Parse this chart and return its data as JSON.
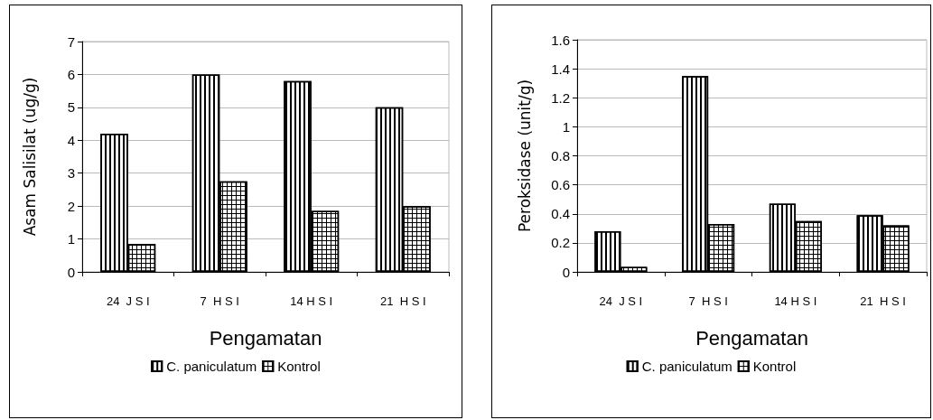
{
  "chart_data": [
    {
      "type": "bar",
      "xlabel": "Pengamatan",
      "ylabel": "Asam Salisilat (ug/g)",
      "categories": [
        "24  J S I",
        "7  H S I",
        "14 H S I",
        "21  H S I"
      ],
      "series": [
        {
          "name": "C. paniculatum",
          "color": "#ffffff",
          "values": [
            4.2,
            6.0,
            5.8,
            5.0
          ]
        },
        {
          "name": "Kontrol",
          "color": "#ffffff",
          "values": [
            0.85,
            2.75,
            1.85,
            2.0
          ]
        }
      ],
      "ylim": [
        0,
        7
      ],
      "yticks": [
        0,
        1,
        2,
        3,
        4,
        5,
        6,
        7
      ],
      "grid": "y",
      "legend": "bottom"
    },
    {
      "type": "bar",
      "xlabel": "Pengamatan",
      "ylabel": "Peroksidase (unit/g)",
      "categories": [
        "24  J S I",
        "7  H S I",
        "14 H S I",
        "21  H S I"
      ],
      "series": [
        {
          "name": "C. paniculatum",
          "color": "#ffffff",
          "values": [
            0.28,
            1.35,
            0.47,
            0.39
          ]
        },
        {
          "name": "Kontrol",
          "color": "#ffffff",
          "values": [
            0.035,
            0.33,
            0.35,
            0.32
          ]
        }
      ],
      "ylim": [
        0,
        1.6
      ],
      "yticks": [
        0,
        0.2,
        0.4,
        0.6,
        0.8,
        1,
        1.2,
        1.4,
        1.6
      ],
      "grid": "y",
      "legend": "bottom"
    }
  ]
}
